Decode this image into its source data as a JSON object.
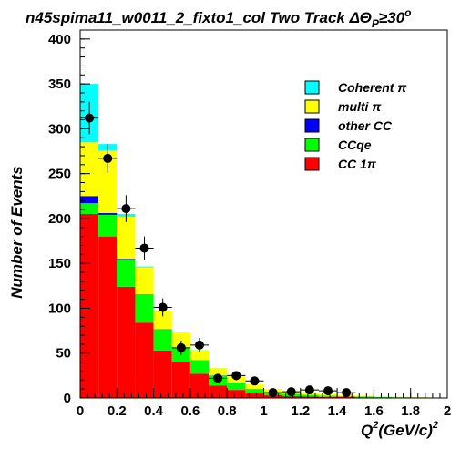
{
  "chart_data": {
    "type": "bar",
    "stacked": true,
    "title": "n45spima11_w0011_2_fixto1_col Two Track ΔΘ",
    "title_sub": "P",
    "title_tail": "≥30",
    "title_sup": "o",
    "xlabel": "Q",
    "xlabel_sup": "2",
    "xlabel_tail": "(GeV/c)",
    "xlabel_tail_sup": "2",
    "ylabel": "Number of Events",
    "xlim": [
      0,
      2
    ],
    "ylim": [
      0,
      410
    ],
    "xticks": [
      0,
      0.2,
      0.4,
      0.6,
      0.8,
      1,
      1.2,
      1.4,
      1.6,
      1.8,
      2
    ],
    "xtick_labels": [
      "0",
      "0.2",
      "0.4",
      "0.6",
      "0.8",
      "1",
      "1.2",
      "1.4",
      "1.6",
      "1.8",
      "2"
    ],
    "yticks": [
      0,
      50,
      100,
      150,
      200,
      250,
      300,
      350,
      400
    ],
    "ytick_labels": [
      "0",
      "50",
      "100",
      "150",
      "200",
      "250",
      "300",
      "350",
      "400"
    ],
    "bin_edges": [
      0,
      0.1,
      0.2,
      0.3,
      0.4,
      0.5,
      0.6,
      0.7,
      0.8,
      0.9,
      1.0,
      1.1,
      1.2,
      1.3,
      1.4,
      1.5,
      1.6,
      1.7,
      1.8,
      1.9,
      2.0
    ],
    "legend_position": "top-right",
    "series": [
      {
        "name": "CC 1π",
        "color": "#ff0000",
        "values": [
          205,
          180,
          124,
          84,
          53,
          40,
          27,
          14,
          9,
          5,
          3,
          2,
          1.5,
          1,
          1,
          0.5,
          0.5,
          0.3,
          0.2,
          0.1
        ]
      },
      {
        "name": "CCqe",
        "color": "#00ff00",
        "values": [
          12,
          24,
          30,
          31,
          23,
          16,
          15,
          11,
          8,
          5,
          3,
          2.5,
          2,
          1.5,
          1,
          1,
          0.5,
          0.5,
          0.3,
          0.2
        ]
      },
      {
        "name": "other CC",
        "color": "#0000ff",
        "values": [
          8,
          2,
          1,
          0.5,
          0.5,
          0.3,
          0.2,
          0.2,
          0.1,
          0.1,
          0.1,
          0,
          0,
          0,
          0,
          0,
          0,
          0,
          0,
          0
        ]
      },
      {
        "name": "multi π",
        "color": "#ffff00",
        "values": [
          60,
          70,
          47,
          30,
          20,
          16,
          11,
          8,
          7,
          5,
          4,
          3,
          2.5,
          2,
          1,
          1,
          0.6,
          0.4,
          0.2,
          0.1
        ]
      },
      {
        "name": "Coherent π",
        "color": "#00ffff",
        "values": [
          65,
          7,
          3,
          1,
          0.5,
          0.3,
          0.2,
          0.1,
          0,
          0,
          0,
          0,
          0,
          0,
          0,
          0,
          0,
          0,
          0,
          0
        ]
      }
    ],
    "legend": [
      {
        "name": "Coherent π",
        "color": "#00ffff"
      },
      {
        "name": "multi π",
        "color": "#ffff00"
      },
      {
        "name": "other CC",
        "color": "#0000ff"
      },
      {
        "name": "CCqe",
        "color": "#00ff00"
      },
      {
        "name": "CC 1π",
        "color": "#ff0000"
      }
    ],
    "data_points": {
      "name": "data",
      "x": [
        0.05,
        0.15,
        0.25,
        0.35,
        0.45,
        0.55,
        0.65,
        0.75,
        0.85,
        0.95,
        1.05,
        1.15,
        1.25,
        1.35,
        1.45
      ],
      "y": [
        312,
        267,
        211,
        167,
        101,
        56,
        59,
        22,
        25,
        19,
        6,
        7,
        9,
        8,
        6
      ],
      "yerr": [
        18,
        16,
        15,
        13,
        10,
        8,
        8,
        5,
        5,
        4,
        3,
        3,
        3,
        3,
        3
      ]
    }
  }
}
